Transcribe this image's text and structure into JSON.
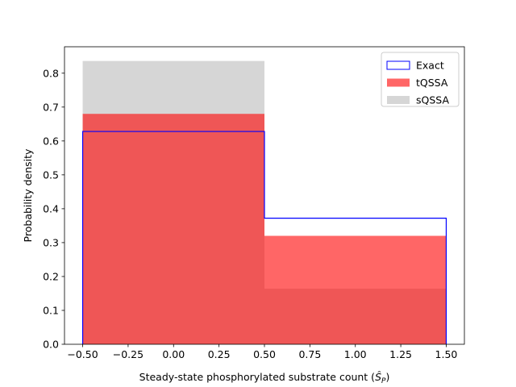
{
  "chart_data": {
    "type": "histogram",
    "title": "",
    "xlabel": "Steady-state phosphorylated substrate count (",
    "xlabel_math": "Ŝ",
    "xlabel_sub": "P",
    "xlabel_end": ")",
    "ylabel": "Probability density",
    "xlim": [
      -0.6,
      1.6
    ],
    "ylim": [
      0.0,
      0.878
    ],
    "xticks": [
      -0.5,
      -0.25,
      0.0,
      0.25,
      0.5,
      0.75,
      1.0,
      1.25,
      1.5
    ],
    "xtick_labels": [
      "−0.50",
      "−0.25",
      "0.00",
      "0.25",
      "0.50",
      "0.75",
      "1.00",
      "1.25",
      "1.50"
    ],
    "yticks": [
      0.0,
      0.1,
      0.2,
      0.3,
      0.4,
      0.5,
      0.6,
      0.7,
      0.8
    ],
    "ytick_labels": [
      "0.0",
      "0.1",
      "0.2",
      "0.3",
      "0.4",
      "0.5",
      "0.6",
      "0.7",
      "0.8"
    ],
    "bin_edges": [
      -0.5,
      0.5,
      1.5
    ],
    "series": [
      {
        "name": "sQSSA",
        "style": "filled",
        "color": "#cccccc",
        "alpha": 0.8,
        "values": [
          0.836,
          0.164
        ]
      },
      {
        "name": "tQSSA",
        "style": "filled",
        "color": "#ff0000",
        "alpha": 0.6,
        "values": [
          0.68,
          0.32
        ]
      },
      {
        "name": "Exact",
        "style": "step",
        "color": "#0000ff",
        "values": [
          0.628,
          0.372
        ]
      }
    ],
    "legend": {
      "position": "top-right",
      "entries": [
        {
          "label": "Exact",
          "style": "outline",
          "color": "#0000ff"
        },
        {
          "label": "tQSSA",
          "style": "filled",
          "color": "#ff6666"
        },
        {
          "label": "sQSSA",
          "style": "filled",
          "color": "#d6d6d6"
        }
      ]
    },
    "grid": false
  }
}
